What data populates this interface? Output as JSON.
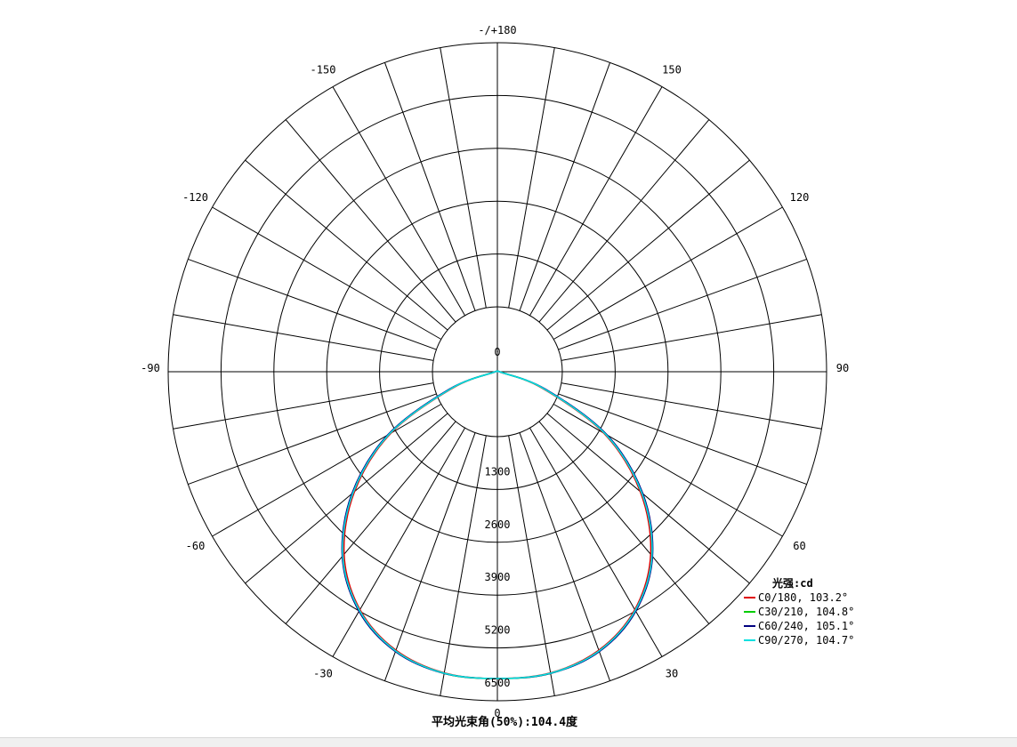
{
  "chart_data": {
    "type": "polar",
    "angle_labels": [
      {
        "deg": 0,
        "text": "0"
      },
      {
        "deg": 30,
        "text": "30"
      },
      {
        "deg": 60,
        "text": "60"
      },
      {
        "deg": 90,
        "text": "90"
      },
      {
        "deg": 120,
        "text": "120"
      },
      {
        "deg": 150,
        "text": "150"
      },
      {
        "deg": 180,
        "text": "-/+180"
      },
      {
        "deg": -150,
        "text": "-150"
      },
      {
        "deg": -120,
        "text": "-120"
      },
      {
        "deg": -90,
        "text": "-90"
      },
      {
        "deg": -60,
        "text": "-60"
      },
      {
        "deg": -30,
        "text": "-30"
      }
    ],
    "center_label": "0",
    "rings": [
      1300,
      2600,
      3900,
      5200,
      6500
    ],
    "r_max": 6500,
    "ring_labels": [
      "1300",
      "2600",
      "3900",
      "5200",
      "6500"
    ],
    "spoke_step_deg": 10,
    "grid": true,
    "legend_title": "光强:cd",
    "legend_position": "bottom-right",
    "series": [
      {
        "name": "C0/180, 103.2°",
        "color": "#e00000",
        "angles": [
          -90,
          -80,
          -70,
          -60,
          -50,
          -40,
          -30,
          -20,
          -10,
          0,
          10,
          20,
          30,
          40,
          50,
          60,
          70,
          80,
          90
        ],
        "values": [
          0,
          80,
          1000,
          2600,
          3950,
          5050,
          5820,
          6280,
          6480,
          6500,
          6480,
          6280,
          5820,
          5050,
          3950,
          2600,
          1000,
          80,
          0
        ]
      },
      {
        "name": "C30/210, 104.8°",
        "color": "#00cc00",
        "angles": [
          -90,
          -80,
          -70,
          -60,
          -50,
          -40,
          -30,
          -20,
          -10,
          0,
          10,
          20,
          30,
          40,
          50,
          60,
          70,
          80,
          90
        ],
        "values": [
          0,
          90,
          1050,
          2650,
          4000,
          5100,
          5850,
          6300,
          6490,
          6500,
          6490,
          6300,
          5850,
          5100,
          4000,
          2650,
          1050,
          90,
          0
        ]
      },
      {
        "name": "C60/240, 105.1°",
        "color": "#000080",
        "angles": [
          -90,
          -80,
          -70,
          -60,
          -50,
          -40,
          -30,
          -20,
          -10,
          0,
          10,
          20,
          30,
          40,
          50,
          60,
          70,
          80,
          90
        ],
        "values": [
          0,
          95,
          1080,
          2680,
          4020,
          5110,
          5860,
          6310,
          6490,
          6500,
          6490,
          6310,
          5860,
          5110,
          4020,
          2680,
          1080,
          95,
          0
        ]
      },
      {
        "name": "C90/270, 104.7°",
        "color": "#00e0e0",
        "angles": [
          -90,
          -80,
          -70,
          -60,
          -50,
          -40,
          -30,
          -20,
          -10,
          0,
          10,
          20,
          30,
          40,
          50,
          60,
          70,
          80,
          90
        ],
        "values": [
          0,
          88,
          1040,
          2640,
          3990,
          5090,
          5840,
          6295,
          6485,
          6500,
          6485,
          6295,
          5840,
          5090,
          3990,
          2640,
          1040,
          88,
          0
        ]
      }
    ],
    "footer": "平均光束角(50%):104.4度"
  }
}
